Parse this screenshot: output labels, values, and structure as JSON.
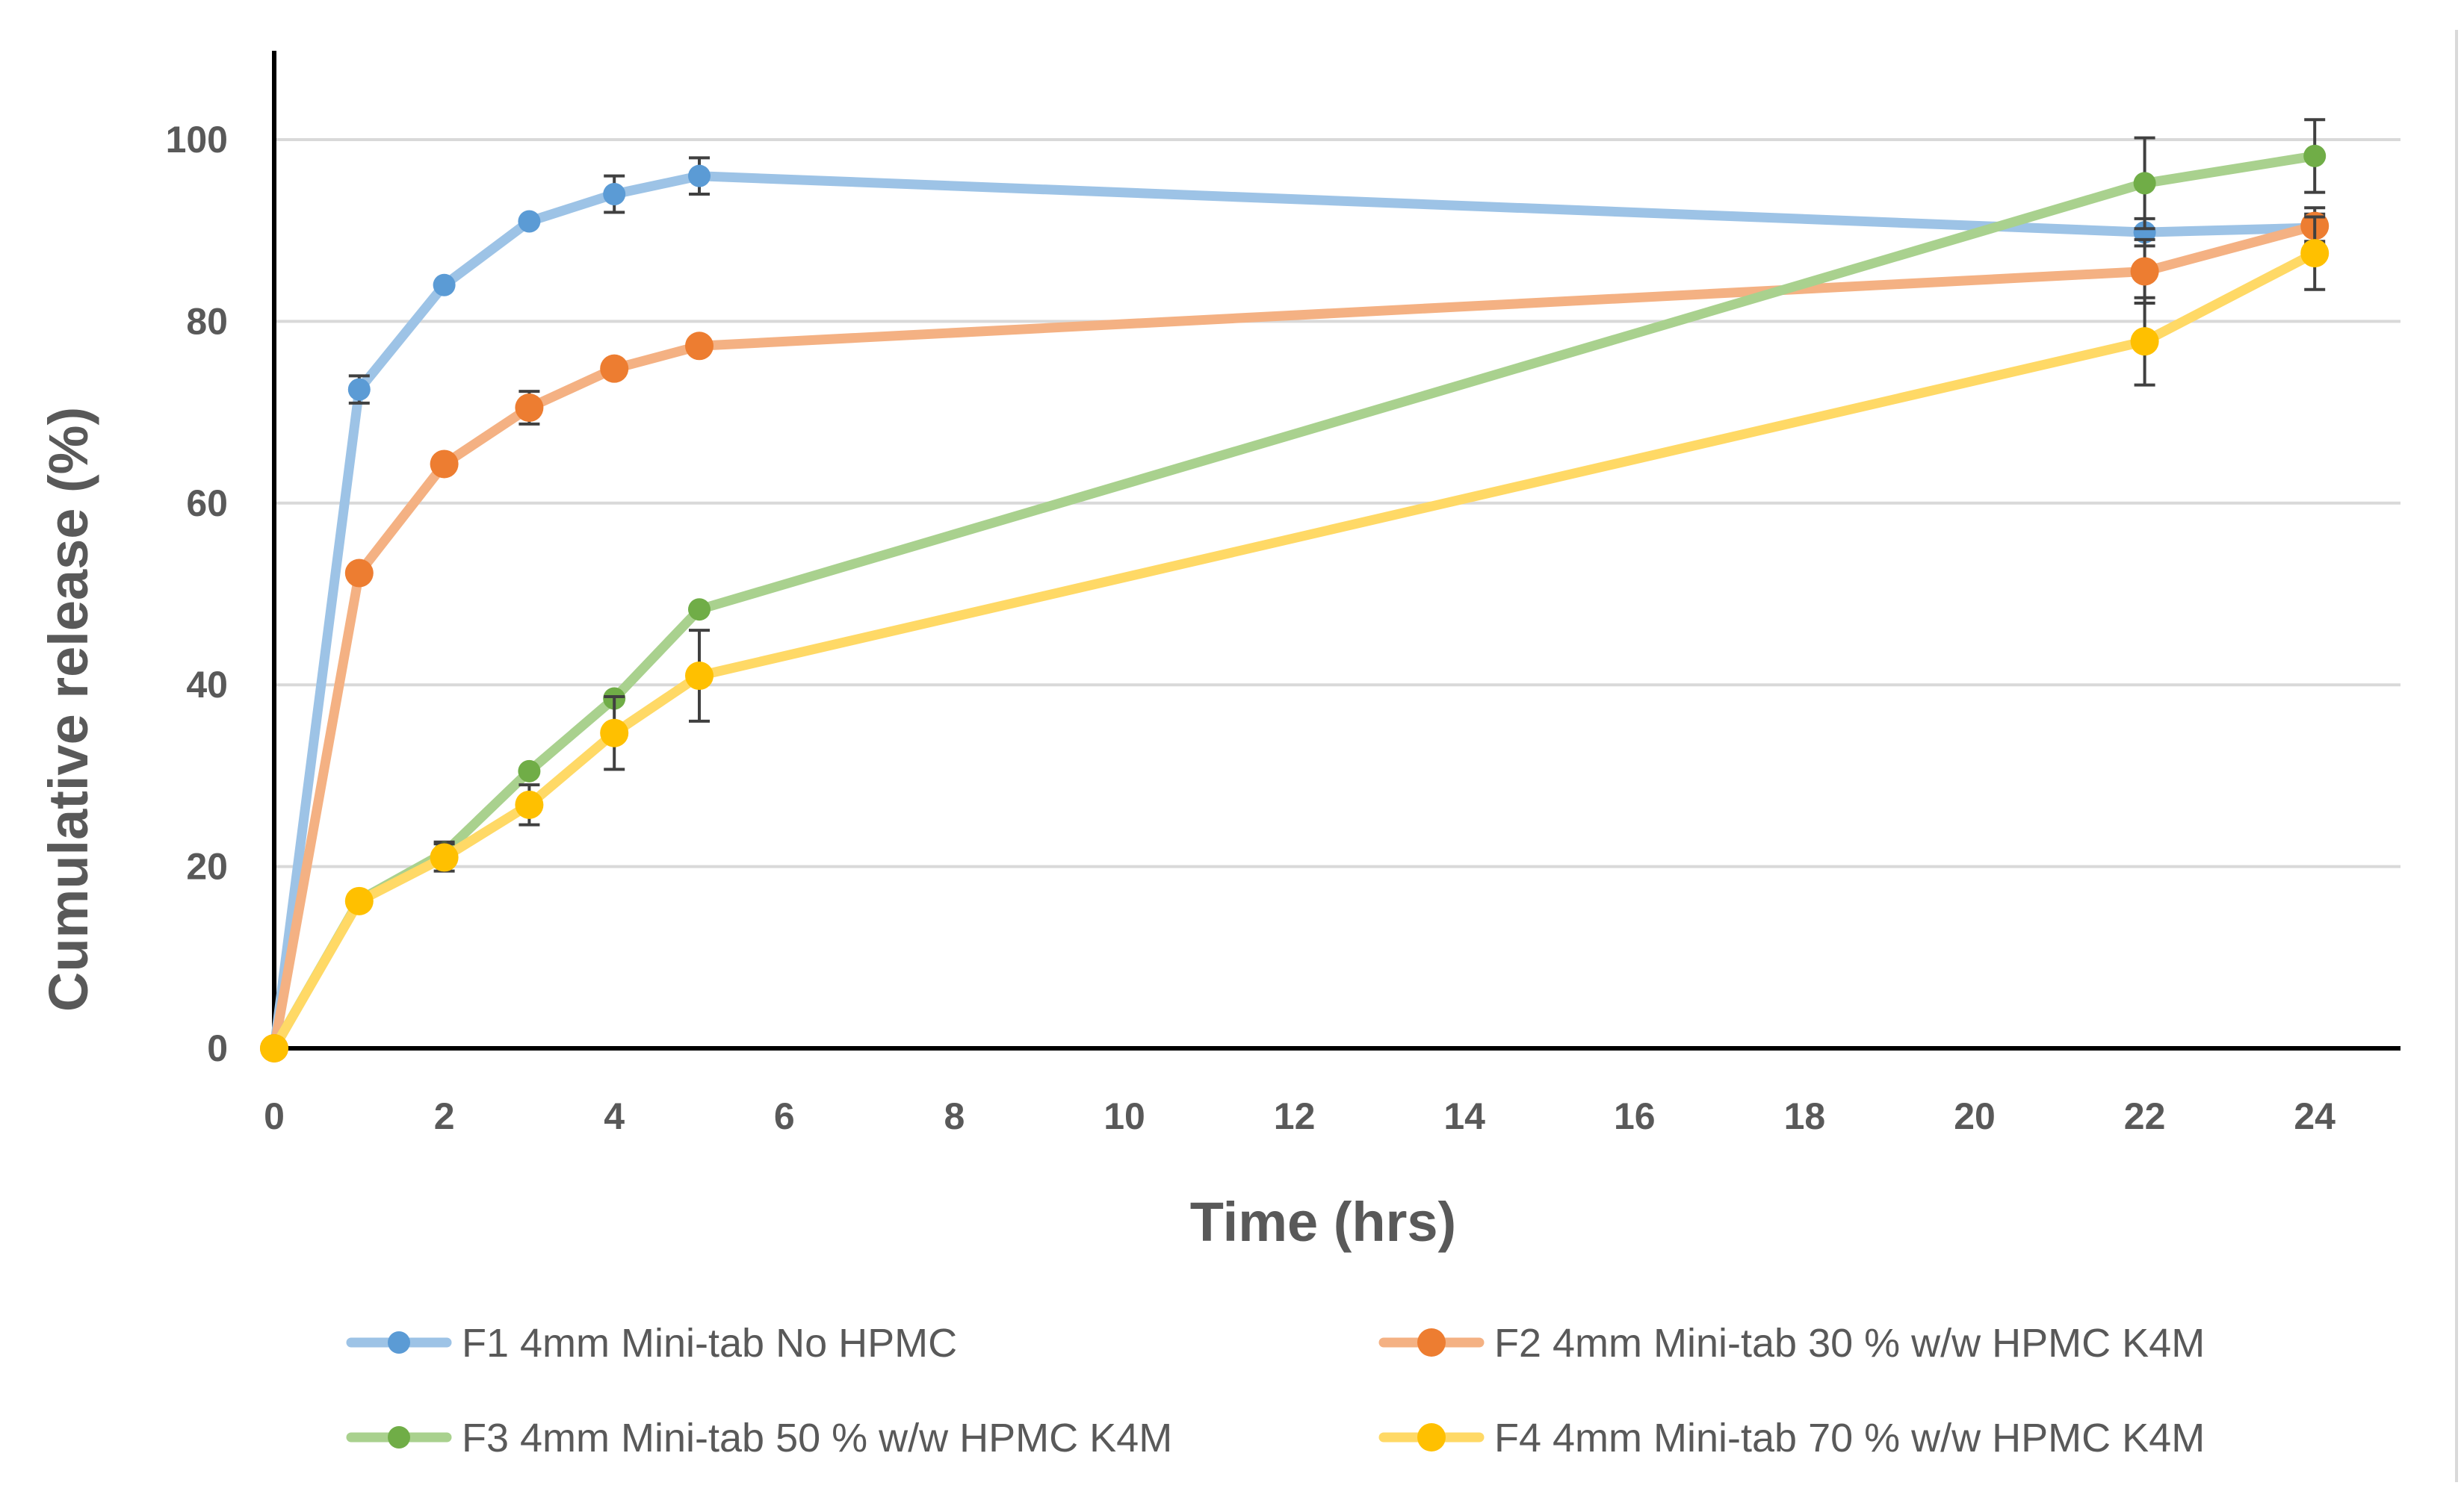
{
  "chart_data": {
    "type": "line",
    "title": "",
    "xlabel": "Time (hrs)",
    "ylabel": "Cumulative release (%)",
    "xlim": [
      0,
      25
    ],
    "ylim": [
      0,
      110
    ],
    "x_ticks": [
      0,
      2,
      4,
      6,
      8,
      10,
      12,
      14,
      16,
      18,
      20,
      22,
      24
    ],
    "y_ticks": [
      0,
      20,
      40,
      60,
      80,
      100
    ],
    "grid": true,
    "legend_position": "bottom",
    "x": [
      0,
      1,
      2,
      3,
      4,
      5,
      22,
      24
    ],
    "series": [
      {
        "name": "F1 4mm Mini-tab No HPMC",
        "color": "#5b9bd5",
        "line_color": "#9dc3e6",
        "values": [
          0,
          72.5,
          84,
          91,
          94,
          96,
          89.8,
          90.3
        ],
        "errors": [
          0,
          1.5,
          0,
          0,
          2,
          2,
          1.5,
          1.5
        ]
      },
      {
        "name": "F2 4mm Mini-tab 30 % w/w HPMC K4M",
        "color": "#ed7d31",
        "line_color": "#f4b183",
        "values": [
          0,
          52.3,
          64.3,
          70.5,
          74.8,
          77.3,
          85.5,
          90.5
        ],
        "errors": [
          0,
          0,
          0,
          1.8,
          0,
          0,
          3.5,
          2
        ]
      },
      {
        "name": "F3 4mm Mini-tab 50 % w/w HPMC K4M",
        "color": "#70ad47",
        "line_color": "#a9d18e",
        "values": [
          0,
          16.3,
          21.5,
          30.5,
          38.5,
          48.3,
          95.2,
          98.2
        ],
        "errors": [
          0,
          0,
          1.2,
          0,
          0,
          0,
          5,
          4
        ]
      },
      {
        "name": "F4 4mm Mini-tab 70 % w/w HPMC K4M",
        "color": "#ffc000",
        "line_color": "#ffd966",
        "values": [
          0,
          16.2,
          21,
          26.8,
          34.7,
          41,
          77.8,
          87.5
        ],
        "errors": [
          0,
          0,
          1.5,
          2.2,
          4,
          5,
          4.8,
          4
        ]
      }
    ]
  }
}
